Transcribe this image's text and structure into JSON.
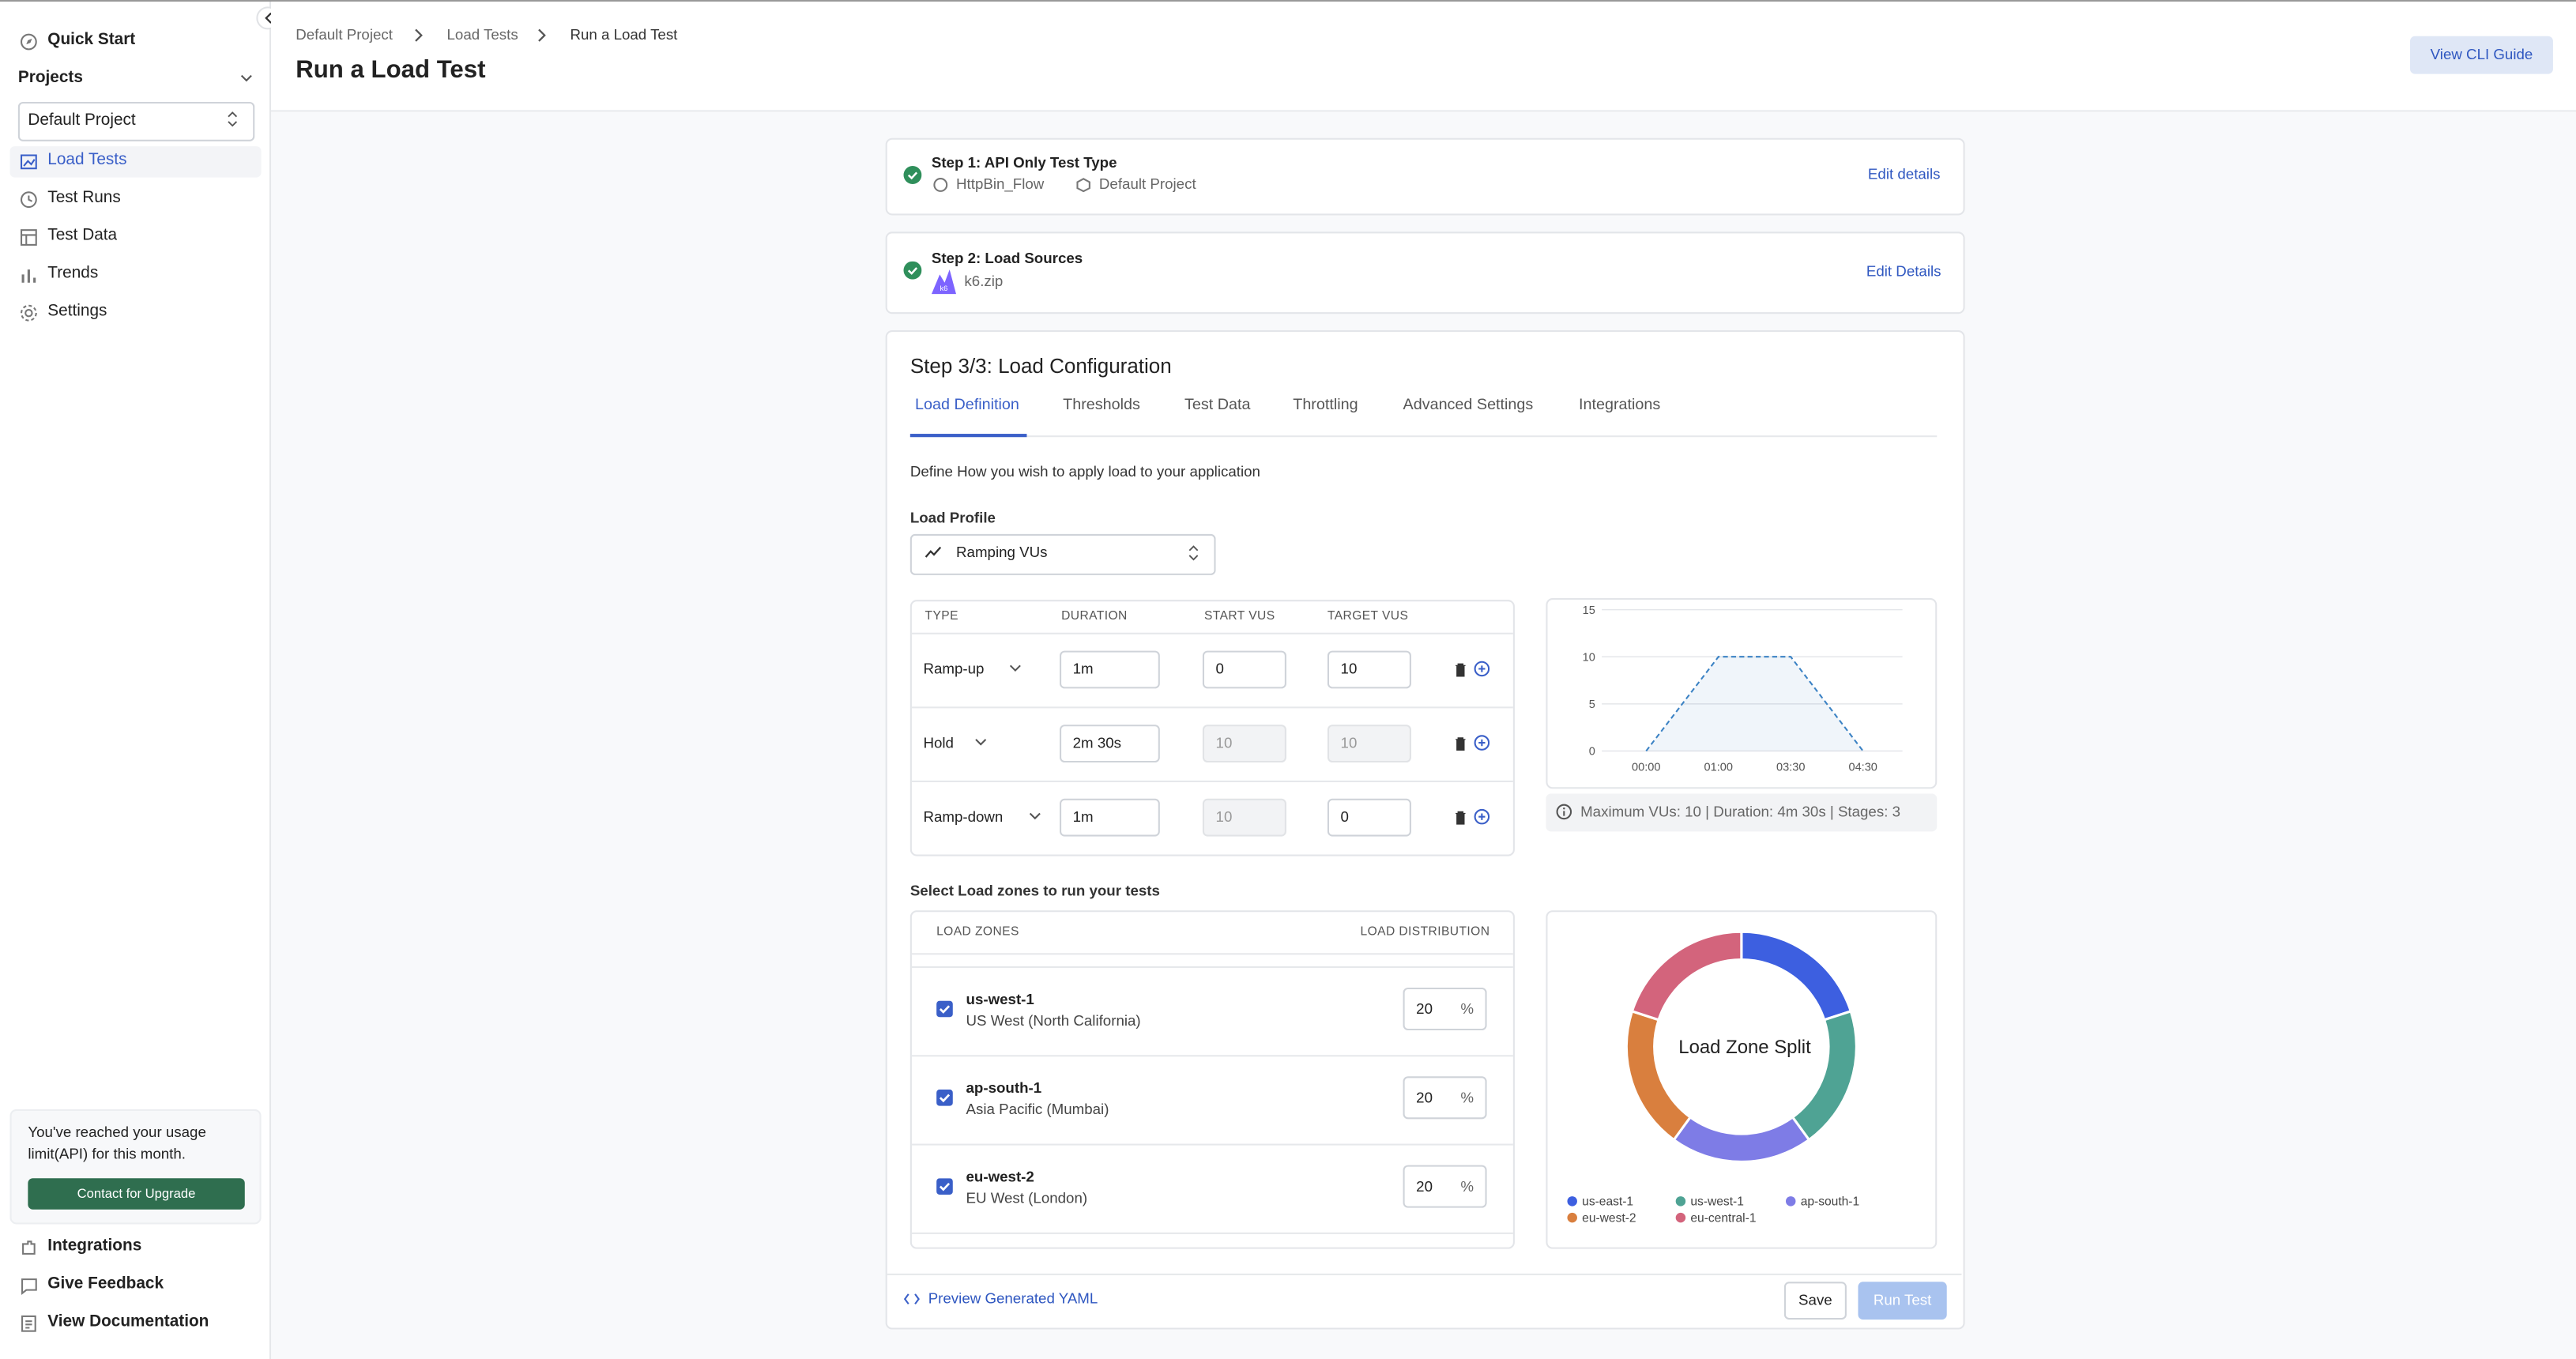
{
  "sidebar": {
    "quick_start": "Quick Start",
    "projects_label": "Projects",
    "project_select": "Default Project",
    "nav": [
      "Load Tests",
      "Test Runs",
      "Test Data",
      "Trends",
      "Settings"
    ],
    "upgrade": {
      "message": "You've reached your usage limit(API) for this month.",
      "button": "Contact for Upgrade"
    },
    "footer": [
      "Integrations",
      "Give Feedback",
      "View Documentation"
    ]
  },
  "header": {
    "breadcrumb": [
      "Default Project",
      "Load Tests",
      "Run a Load Test"
    ],
    "title": "Run a Load Test",
    "cli_button": "View CLI Guide"
  },
  "steps": [
    {
      "title": "Step 1: API Only Test Type",
      "meta": [
        "HttpBin_Flow",
        "Default Project"
      ],
      "action": "Edit details"
    },
    {
      "title": "Step 2: Load Sources",
      "meta": [
        "k6.zip"
      ],
      "action": "Edit Details"
    }
  ],
  "config": {
    "title": "Step 3/3: Load Configuration",
    "tabs": [
      "Load Definition",
      "Thresholds",
      "Test Data",
      "Throttling",
      "Advanced Settings",
      "Integrations"
    ],
    "description": "Define How you wish to apply load to your application",
    "load_profile_label": "Load Profile",
    "load_profile": "Ramping VUs",
    "stages": {
      "columns": [
        "TYPE",
        "DURATION",
        "START VUS",
        "TARGET VUS"
      ],
      "rows": [
        [
          "Ramp-up",
          "1m",
          0,
          10
        ],
        [
          "Hold",
          "2m 30s",
          10,
          10
        ],
        [
          "Ramp-down",
          "1m",
          10,
          0
        ]
      ]
    },
    "summary": "Maximum VUs: 10 | Duration: 4m 30s | Stages: 3",
    "zones_label": "Select Load zones to run your tests",
    "zones": {
      "columns": [
        "LOAD ZONES",
        "LOAD DISTRIBUTION"
      ],
      "unit": "%",
      "rows": [
        {
          "code": "us-west-1",
          "name": "US West (North California)",
          "distribution": 20
        },
        {
          "code": "ap-south-1",
          "name": "Asia Pacific (Mumbai)",
          "distribution": 20
        },
        {
          "code": "eu-west-2",
          "name": "EU West (London)",
          "distribution": 20
        }
      ]
    },
    "preview_link": "Preview Generated YAML",
    "save": "Save",
    "run": "Run Test"
  },
  "chart_data": [
    {
      "type": "line",
      "categories": [
        "00:00",
        "01:00",
        "03:30",
        "04:30"
      ],
      "values": [
        0,
        10,
        10,
        0
      ],
      "color": "#3b82c4",
      "dashed": true,
      "area": true,
      "ylim": [
        0,
        15
      ],
      "yticks": [
        0,
        5,
        10,
        15
      ],
      "grid": true
    },
    {
      "type": "pie",
      "title": "Load Zone Split",
      "donut": true,
      "categories": [
        "us-east-1",
        "us-west-1",
        "ap-south-1",
        "eu-west-2",
        "eu-central-1"
      ],
      "values": [
        20,
        20,
        20,
        20,
        20
      ],
      "colors": [
        "#3d5fe0",
        "#4fa394",
        "#7e7ce6",
        "#d97f3e",
        "#d3647c"
      ]
    }
  ]
}
